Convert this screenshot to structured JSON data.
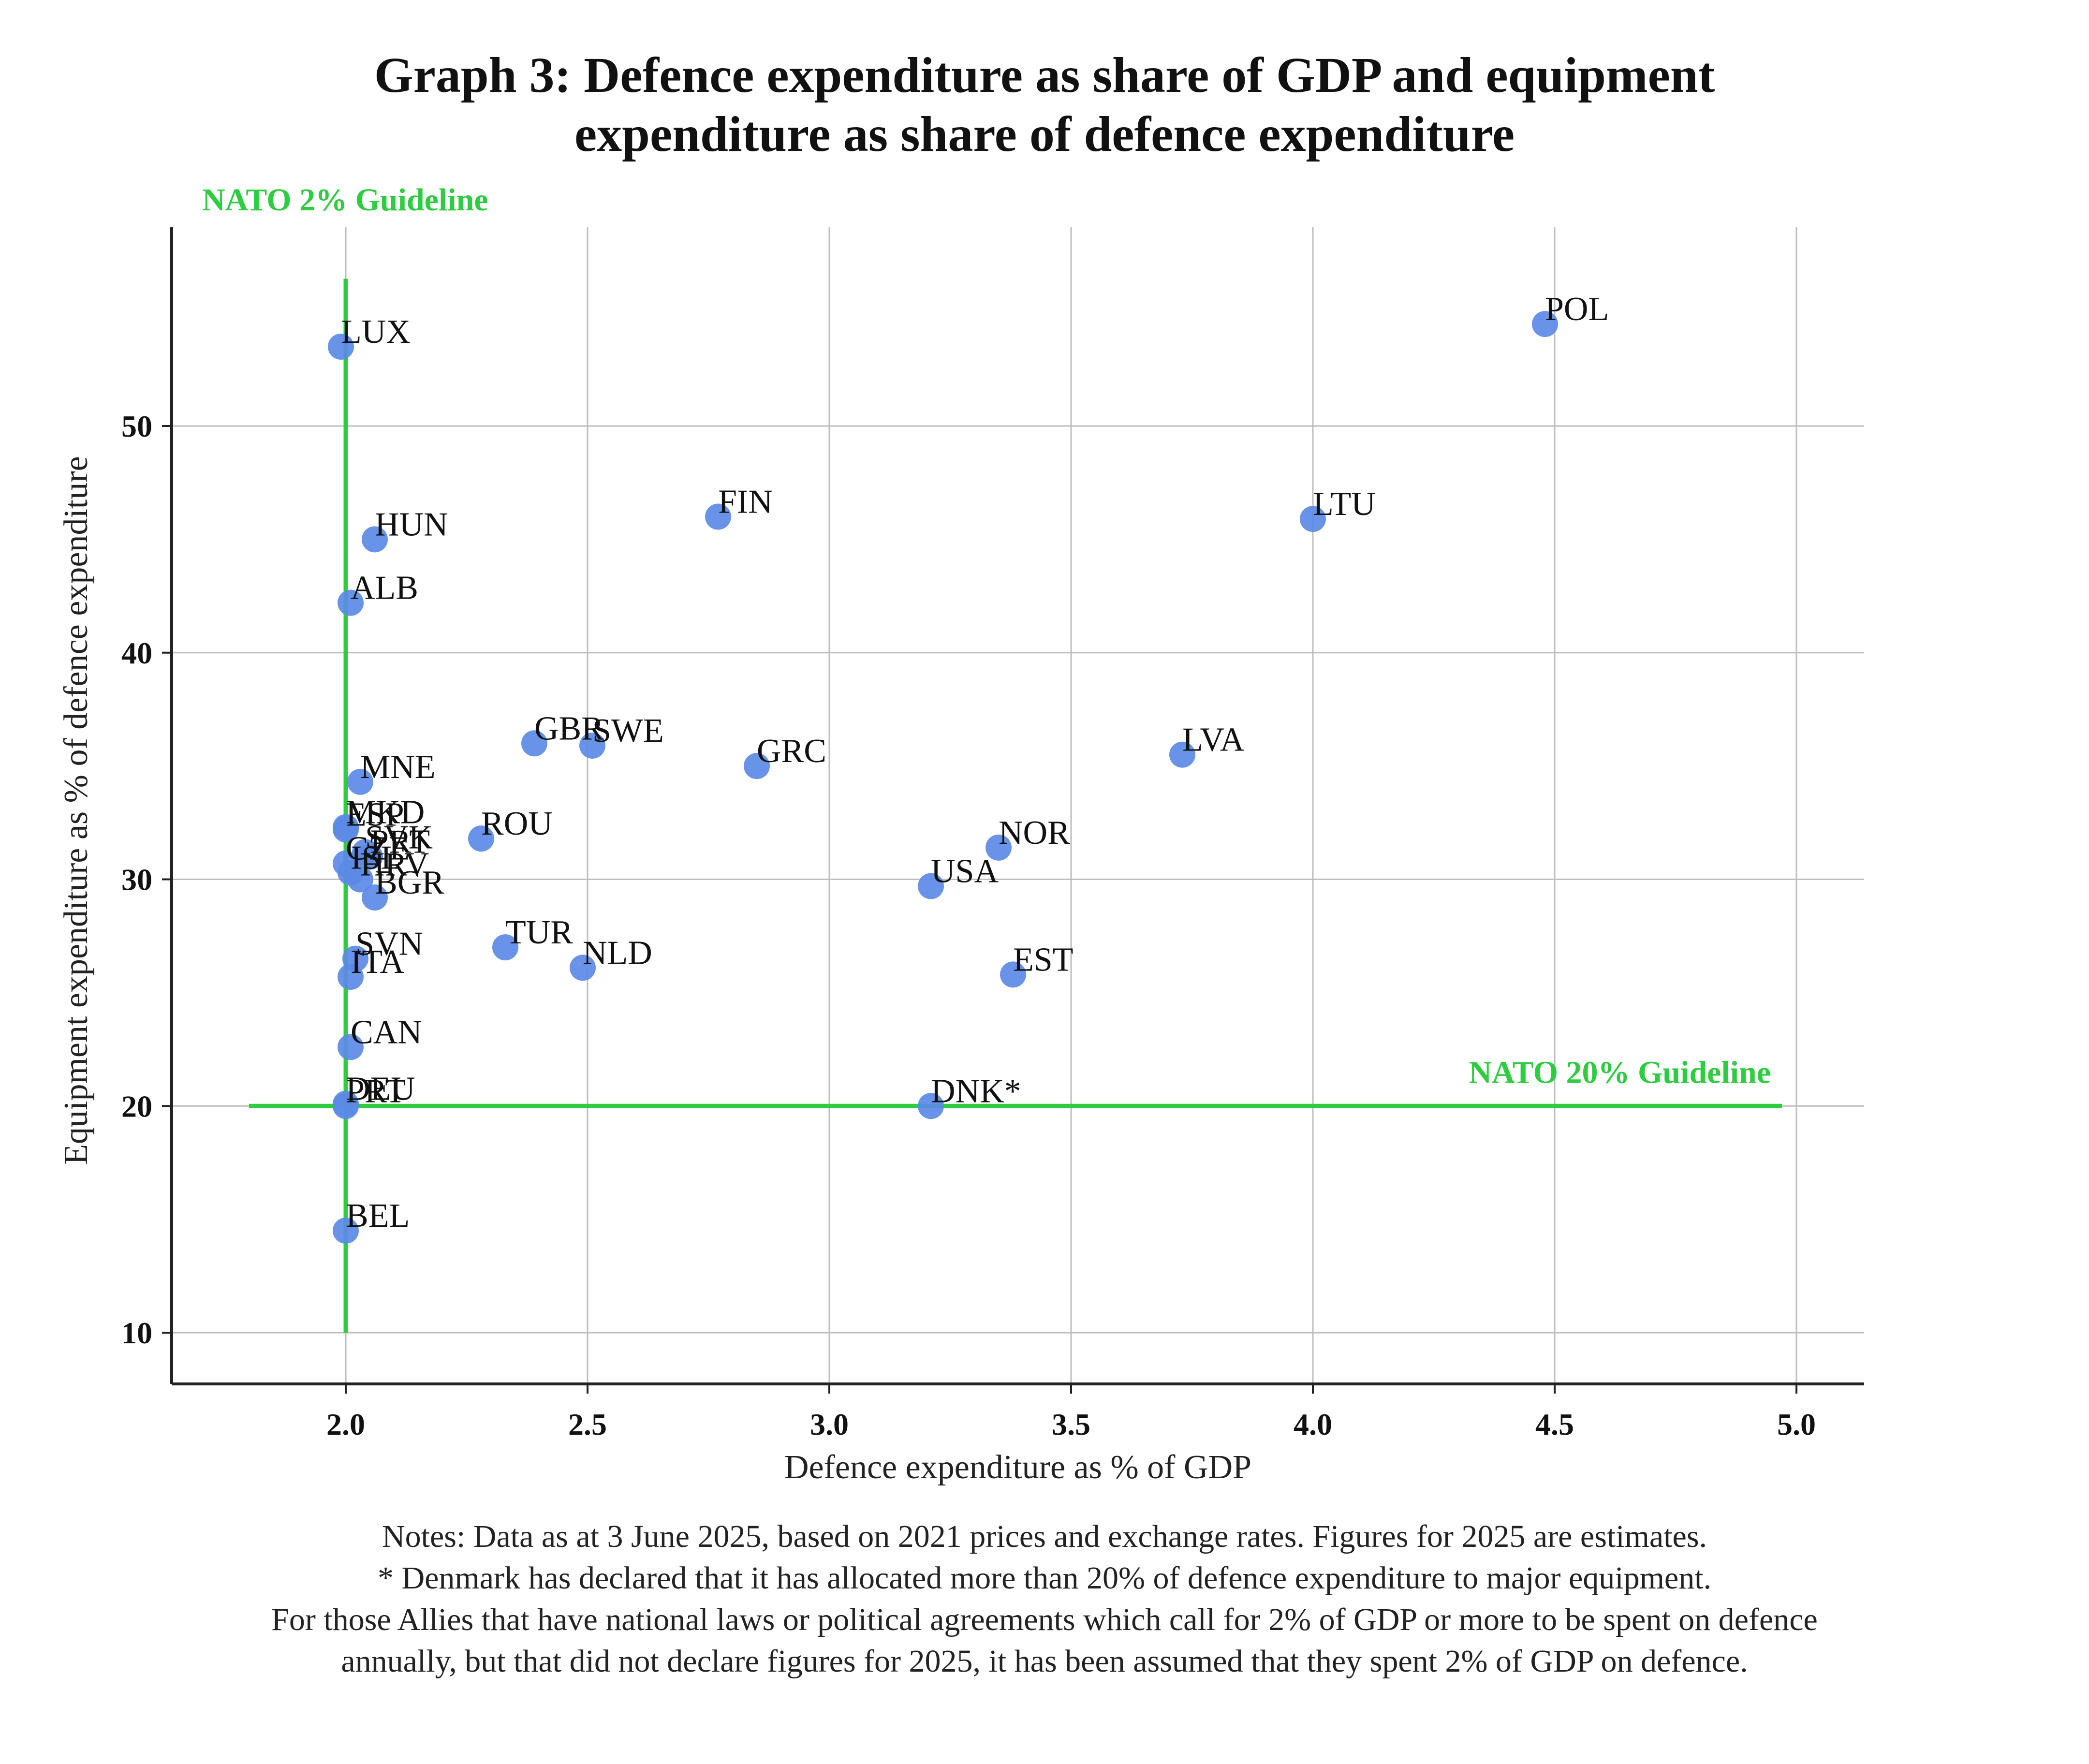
{
  "title_line1": "Graph 3: Defence expenditure as share of GDP and equipment",
  "title_line2": "expenditure as share of defence expenditure",
  "notes": [
    "Notes: Data as at 3 June 2025, based on 2021 prices and exchange rates. Figures for 2025 are estimates.",
    "* Denmark has declared that it has allocated more than 20% of defence expenditure to major equipment.",
    "For those Allies that have national laws or political agreements which call for 2% of GDP or more to be spent on defence",
    "annually, but that did not declare figures for 2025, it has been assumed that they spent 2% of GDP on defence."
  ],
  "colors": {
    "point": "#5b8ae6",
    "guideline": "#2ecc40",
    "grid": "#bdbdbd",
    "axis": "#222222"
  },
  "chart_data": {
    "type": "scatter",
    "title": "Graph 3: Defence expenditure as share of GDP and equipment expenditure as share of defence expenditure",
    "xlabel": "Defence expenditure as % of GDP",
    "ylabel": "Equipment expenditure as % of defence expenditure",
    "xlim": [
      1.64,
      5.14
    ],
    "ylim": [
      7.7,
      58.8
    ],
    "xticks": [
      "2.0",
      "2.5",
      "3.0",
      "3.5",
      "4.0",
      "4.5",
      "5.0"
    ],
    "yticks": [
      "10",
      "20",
      "30",
      "40",
      "50"
    ],
    "grid": true,
    "guidelines": [
      {
        "orientation": "vertical",
        "value": 2.0,
        "from": 10,
        "to": 56.5,
        "label": "NATO 2% Guideline"
      },
      {
        "orientation": "horizontal",
        "value": 20,
        "from": 1.8,
        "to": 4.97,
        "label": "NATO 20% Guideline"
      }
    ],
    "points": [
      {
        "label": "POL",
        "x": 4.48,
        "y": 54.5
      },
      {
        "label": "LUX",
        "x": 1.99,
        "y": 53.5
      },
      {
        "label": "FIN",
        "x": 2.77,
        "y": 46.0
      },
      {
        "label": "LTU",
        "x": 4.0,
        "y": 45.9
      },
      {
        "label": "HUN",
        "x": 2.06,
        "y": 45.0
      },
      {
        "label": "ALB",
        "x": 2.01,
        "y": 42.2
      },
      {
        "label": "GBR",
        "x": 2.39,
        "y": 36.0
      },
      {
        "label": "SWE",
        "x": 2.51,
        "y": 35.9
      },
      {
        "label": "LVA",
        "x": 3.73,
        "y": 35.5
      },
      {
        "label": "GRC",
        "x": 2.85,
        "y": 35.0
      },
      {
        "label": "MNE",
        "x": 2.03,
        "y": 34.3
      },
      {
        "label": "MKD",
        "x": 2.0,
        "y": 32.3
      },
      {
        "label": "ESP",
        "x": 2.0,
        "y": 32.2
      },
      {
        "label": "ROU",
        "x": 2.28,
        "y": 31.8
      },
      {
        "label": "NOR",
        "x": 3.35,
        "y": 31.4
      },
      {
        "label": "SVK",
        "x": 2.04,
        "y": 31.2
      },
      {
        "label": "PRT",
        "x": 2.05,
        "y": 31.0
      },
      {
        "label": "CZE",
        "x": 2.0,
        "y": 30.7
      },
      {
        "label": "HRV",
        "x": 2.03,
        "y": 30.0
      },
      {
        "label": "ISL",
        "x": 2.01,
        "y": 30.3
      },
      {
        "label": "USA",
        "x": 3.21,
        "y": 29.7
      },
      {
        "label": "BGR",
        "x": 2.06,
        "y": 29.2
      },
      {
        "label": "TUR",
        "x": 2.33,
        "y": 27.0
      },
      {
        "label": "SVN",
        "x": 2.02,
        "y": 26.5
      },
      {
        "label": "NLD",
        "x": 2.49,
        "y": 26.1
      },
      {
        "label": "EST",
        "x": 3.38,
        "y": 25.8
      },
      {
        "label": "ITA",
        "x": 2.01,
        "y": 25.7
      },
      {
        "label": "CAN",
        "x": 2.01,
        "y": 22.6
      },
      {
        "label": "PRT",
        "x": 2.0,
        "y": 20.0
      },
      {
        "label": "DEU",
        "x": 2.0,
        "y": 20.1
      },
      {
        "label": "DNK*",
        "x": 3.21,
        "y": 20.0
      },
      {
        "label": "BEL",
        "x": 2.0,
        "y": 14.5
      }
    ]
  }
}
